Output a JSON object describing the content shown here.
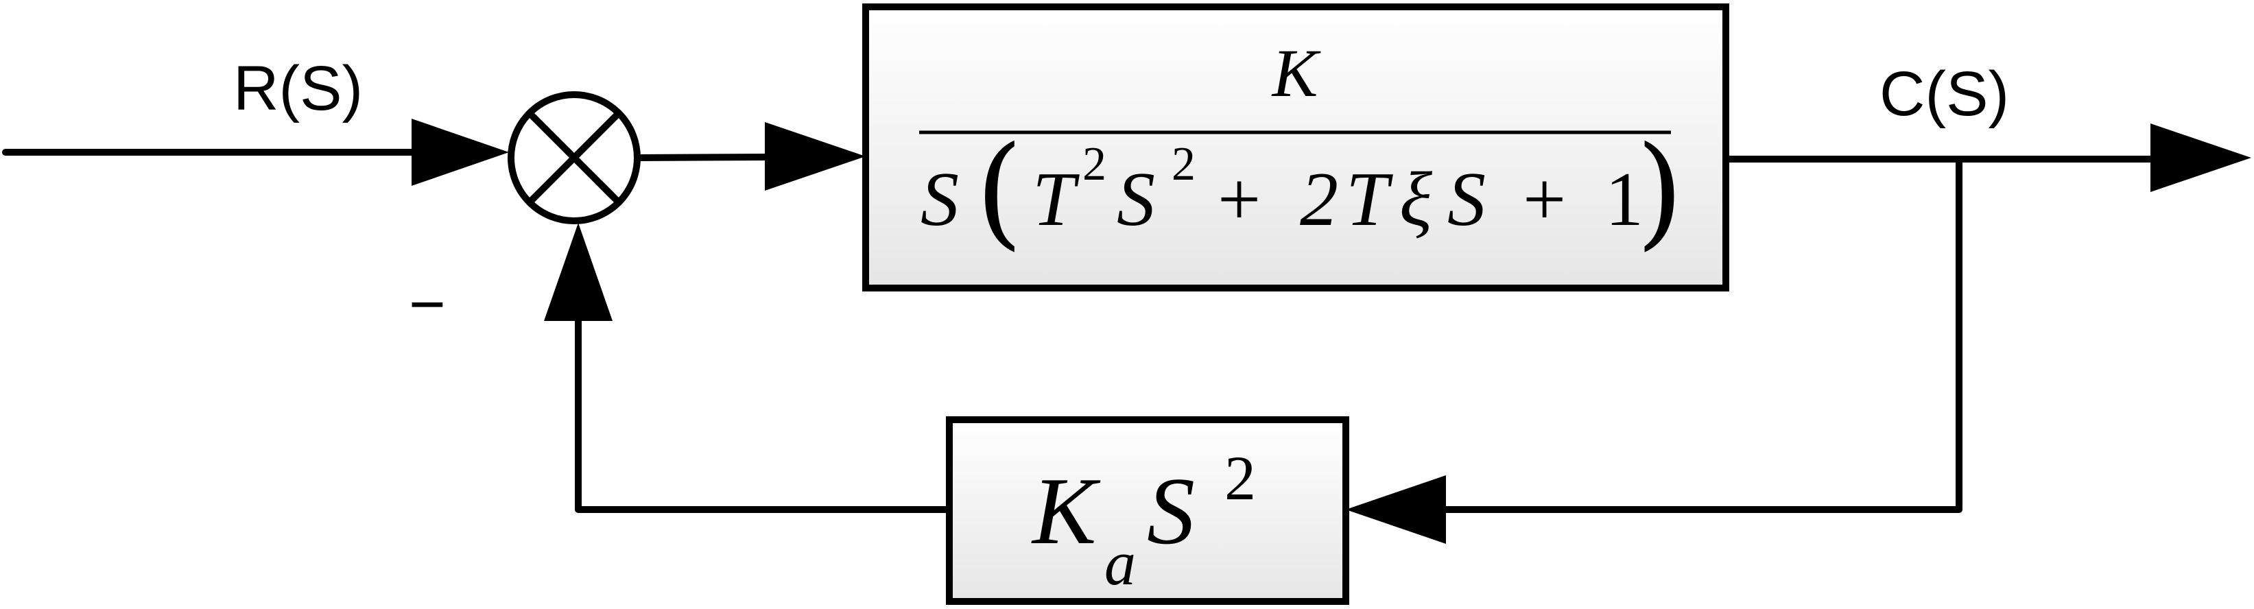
{
  "labels": {
    "input": "R(S)",
    "output": "C(S)",
    "feedback_sign": "−"
  },
  "forward_block": {
    "numerator": "K",
    "denominator": {
      "s": "S",
      "open_paren": "(",
      "t1": "T",
      "t1_exp": "2",
      "s1": "S",
      "s1_exp": "2",
      "plus1": "+",
      "coef": "2",
      "t2": "T",
      "xi": "ξ",
      "s2": "S",
      "plus2": "+",
      "one": "1",
      "close_paren": ")"
    }
  },
  "feedback_block": {
    "k": "K",
    "k_sub": "a",
    "s": "S",
    "s_exp": "2"
  }
}
